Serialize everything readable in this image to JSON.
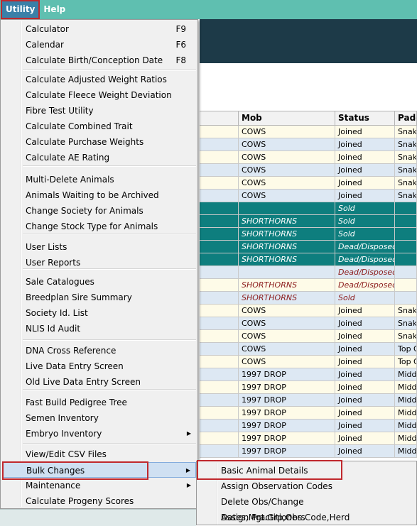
{
  "menubar": {
    "items": [
      {
        "label": "Utility"
      },
      {
        "label": "Help"
      }
    ]
  },
  "table": {
    "headers": [
      "",
      "Mob",
      "Status",
      "Paddo"
    ],
    "rows": [
      {
        "style": "yellow",
        "cells": [
          "",
          "COWS",
          "Joined",
          "Snake"
        ]
      },
      {
        "style": "blue",
        "cells": [
          "",
          "COWS",
          "Joined",
          "Snake"
        ]
      },
      {
        "style": "yellow",
        "cells": [
          "",
          "COWS",
          "Joined",
          "Snake"
        ]
      },
      {
        "style": "blue",
        "cells": [
          "",
          "COWS",
          "Joined",
          "Snake"
        ]
      },
      {
        "style": "yellow",
        "cells": [
          "",
          "COWS",
          "Joined",
          "Snake"
        ]
      },
      {
        "style": "blue",
        "cells": [
          "",
          "COWS",
          "Joined",
          "Snake"
        ]
      },
      {
        "style": "teal",
        "cells": [
          "",
          "",
          "Sold",
          ""
        ]
      },
      {
        "style": "teal",
        "cells": [
          "",
          "SHORTHORNS",
          "Sold",
          ""
        ]
      },
      {
        "style": "teal",
        "cells": [
          "",
          "SHORTHORNS",
          "Sold",
          ""
        ]
      },
      {
        "style": "teal",
        "cells": [
          "",
          "SHORTHORNS",
          "Dead/Disposed",
          ""
        ]
      },
      {
        "style": "teal",
        "cells": [
          "",
          "SHORTHORNS",
          "Dead/Disposed",
          ""
        ]
      },
      {
        "style": "blue red-text",
        "cells": [
          "",
          "",
          "Dead/Disposed",
          ""
        ]
      },
      {
        "style": "yellow red-text",
        "cells": [
          "",
          "SHORTHORNS",
          "Dead/Disposed",
          ""
        ]
      },
      {
        "style": "blue red-text",
        "cells": [
          "",
          "SHORTHORNS",
          "Sold",
          ""
        ]
      },
      {
        "style": "yellow",
        "cells": [
          "",
          "COWS",
          "Joined",
          "Snake"
        ]
      },
      {
        "style": "blue",
        "cells": [
          "",
          "COWS",
          "Joined",
          "Snake"
        ]
      },
      {
        "style": "yellow",
        "cells": [
          "",
          "COWS",
          "Joined",
          "Snake"
        ]
      },
      {
        "style": "blue",
        "cells": [
          "",
          "COWS",
          "Joined",
          "Top Gu"
        ]
      },
      {
        "style": "yellow",
        "cells": [
          "",
          "COWS",
          "Joined",
          "Top Gu"
        ]
      },
      {
        "style": "blue",
        "cells": [
          "",
          "1997 DROP",
          "Joined",
          "Middle"
        ]
      },
      {
        "style": "yellow",
        "cells": [
          "",
          "1997 DROP",
          "Joined",
          "Middle"
        ]
      },
      {
        "style": "blue",
        "cells": [
          "",
          "1997 DROP",
          "Joined",
          "Middle"
        ]
      },
      {
        "style": "yellow",
        "cells": [
          "",
          "1997 DROP",
          "Joined",
          "Middle"
        ]
      },
      {
        "style": "blue",
        "cells": [
          "",
          "1997 DROP",
          "Joined",
          "Middle"
        ]
      },
      {
        "style": "yellow",
        "cells": [
          "",
          "1997 DROP",
          "Joined",
          "Middle"
        ]
      },
      {
        "style": "blue",
        "cells": [
          "",
          "1997 DROP",
          "Joined",
          "Middle"
        ]
      }
    ]
  },
  "utility_menu": {
    "items": [
      {
        "label": "Calculator",
        "shortcut": "F9"
      },
      {
        "label": "Calendar",
        "shortcut": "F6"
      },
      {
        "label": "Calculate Birth/Conception Date",
        "shortcut": "F8"
      },
      {
        "label": "Calculate Adjusted Weight Ratios"
      },
      {
        "label": "Calculate Fleece Weight Deviation"
      },
      {
        "label": "Fibre Test Utility"
      },
      {
        "label": "Calculate Combined Trait"
      },
      {
        "label": "Calculate Purchase Weights"
      },
      {
        "label": "Calculate AE Rating"
      },
      {
        "label": "Multi-Delete Animals"
      },
      {
        "label": "Animals Waiting to be Archived"
      },
      {
        "label": "Change Society for Animals"
      },
      {
        "label": "Change Stock Type for Animals"
      },
      {
        "label": "User Lists"
      },
      {
        "label": "User Reports"
      },
      {
        "label": "Sale Catalogues"
      },
      {
        "label": "Breedplan Sire Summary"
      },
      {
        "label": "Society Id. List"
      },
      {
        "label": "NLIS Id Audit"
      },
      {
        "label": "DNA Cross Reference"
      },
      {
        "label": "Live Data Entry Screen"
      },
      {
        "label": "Old Live Data Entry Screen"
      },
      {
        "label": "Fast Build Pedigree Tree"
      },
      {
        "label": "Semen Inventory"
      },
      {
        "label": "Embryo Inventory"
      },
      {
        "label": "View/Edit CSV Files"
      },
      {
        "label": "Bulk Changes"
      },
      {
        "label": "Maintenance"
      },
      {
        "label": "Calculate Progeny Scores"
      }
    ]
  },
  "bulk_changes_submenu": {
    "items": [
      {
        "label": "Basic Animal Details"
      },
      {
        "label": "Assign Observation Codes"
      },
      {
        "label": "Delete Obs/Change Dates,Mgt.Grp,Obs.Code,Herd"
      },
      {
        "label": "Assign Practitioners"
      }
    ]
  }
}
